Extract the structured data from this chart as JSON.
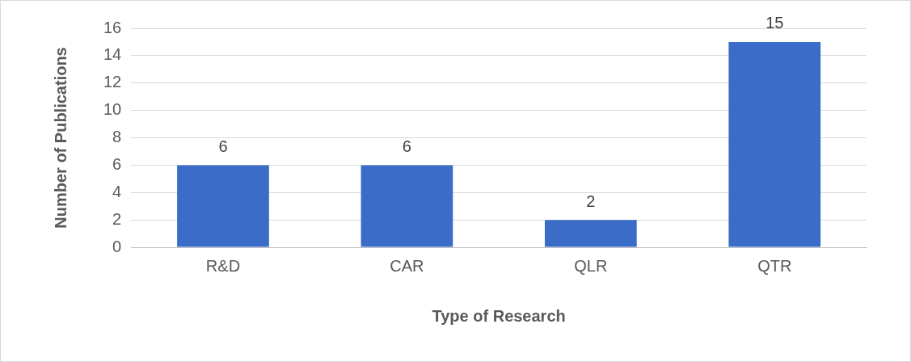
{
  "chart_data": {
    "type": "bar",
    "xlabel": "Type of Research",
    "ylabel": "Number of Publications",
    "categories": [
      "R&D",
      "CAR",
      "QLR",
      "QTR"
    ],
    "values": [
      6,
      6,
      2,
      15
    ],
    "color": "#3a6cc8",
    "ylim": [
      0,
      16
    ],
    "yticks": [
      0,
      2,
      4,
      6,
      8,
      10,
      12,
      14,
      16
    ],
    "grid": "y",
    "data_labels": true,
    "legend": false
  }
}
